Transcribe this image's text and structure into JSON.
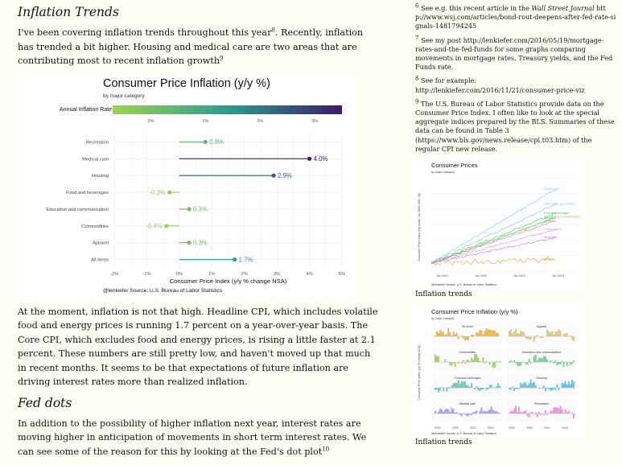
{
  "article": {
    "section1_title": "Inflation Trends",
    "p1_a": "I've been covering inflation trends throughout this year",
    "p1_a_sup": "8",
    "p1_b": ". Recently, inflation has trended a bit higher. Housing and medical care are two areas that are contributing most to recent inflation growth",
    "p1_b_sup": "9",
    "p2": "At the moment, inflation is not that high. Headline CPI, which includes volatile food and energy prices is running 1.7 percent on a year-over-year basis. The Core CPI, which excludes food and energy prices, is rising a little faster at 2.1 percent. These numbers are still pretty low, and haven't moved up that much in recent months. It seems to be that expectations of future inflation are driving interest rates more than realized inflation.",
    "section2_title": "Fed dots",
    "p3": "In addition to the possibility of higher inflation next year, interest rates are moving higher in anticipation of movements in short term interest rates. We can see some of the reason for this by looking at the Fed's dot plot",
    "p3_sup": "10"
  },
  "sidebar": {
    "note6_num": "6",
    "note6_text": "See e.g. this recent article in the ",
    "note6_source": "Wall Street Journal",
    "note6_url": "http://www.wsj.com/articles/bond-rout-deepens-after-fed-rate-signals-1481794245",
    "note7_num": "7",
    "note7_text": "See my post http://lenkiefer.com/2016/05/19/mortgage-rates-and-the-fed-funds for some graphs comparing movements in mortgage rates, Treasury yields, and the Fed Funds rate.",
    "note8_num": "8",
    "note8_text": "See for example: http://lenkiefer.com/2016/11/21/consumer-price-viz",
    "note9_num": "9",
    "note9_text": "The U.S. Bureau of Labor Statistics provide data on the Consumer Price Index. I often like to look at the special aggregate indices prepared by the BLS. Summaries of these data can be found in Table 3 (https://www.bls.gov/news.release/cpi.t03.htm) of the regular CPI new release.",
    "mini1_title": "Consumer Prices",
    "mini1_subtitle": "by major category",
    "mini1_ylabel": "Consumer Price Index (log scale, Jan 2000=100, SA)",
    "mini1_source": "@lenkiefer Source: U.S. Bureau of Labor Statistics",
    "mini1_x": [
      "Jan 2000",
      "Jan 2005",
      "Jan 2010",
      "Jan 2015"
    ],
    "mini1_labels": [
      "Medical care",
      "Other goods and services",
      "Food and beverages",
      "Education and communication",
      "Housing",
      "All items",
      "Transportation",
      "Recreation",
      "Apparel"
    ],
    "mini1_caption": "Inflation trends",
    "mini2_title": "Consumer Price Inflation (y/y %)",
    "mini2_subtitle": "by major category",
    "mini2_ylabel": "Consumer Price Index (y/y % change NSA)",
    "mini2_panels": [
      "All items",
      "Apparel",
      "Commodities",
      "Education and communication",
      "Food and beverages",
      "Housing",
      "Medical care",
      "Recreation"
    ],
    "mini2_x": [
      "2000",
      "2005",
      "2010",
      "2015"
    ],
    "mini2_source": "@lenkiefer Source: U.S. Bureau of Labor Statistics",
    "mini2_caption": "Inflation trends"
  },
  "colors": {
    "low": "#9bd44d",
    "mid": "#2a9d8f",
    "high": "#3f1a6b",
    "background": "#fffff8"
  },
  "chart_data": {
    "type": "lollipop",
    "title": "Consumer Price Inflation (y/y %)",
    "subtitle": "by major category",
    "legend_title": "Annual Inflation Rate (%)",
    "legend_ticks": [
      "0%",
      "1%",
      "2%",
      "3%"
    ],
    "categories": [
      "Recreation",
      "Medical care",
      "Housing",
      "Food and beverages",
      "Education and communication",
      "Commodities",
      "Apparel",
      "All items"
    ],
    "values": [
      0.8,
      4.0,
      2.9,
      -0.3,
      0.3,
      -0.4,
      0.3,
      1.7
    ],
    "value_labels": [
      "0.8%",
      "4.0%",
      "2.9%",
      "-0.3%",
      "0.3%",
      "-0.4%",
      "0.3%",
      "1.7%"
    ],
    "xlabel": "Consumer Price Index (y/y % change NSA)",
    "xticks": [
      "-2%",
      "-1%",
      "0%",
      "1%",
      "2%",
      "3%",
      "4%",
      "5%"
    ],
    "xlim": [
      -2,
      5
    ],
    "source": "@lenkiefer Source: U.S. Bureau of Labor Statistics"
  }
}
